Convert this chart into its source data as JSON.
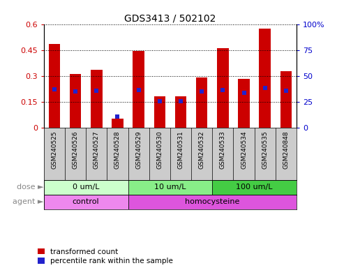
{
  "title": "GDS3413 / 502102",
  "samples": [
    "GSM240525",
    "GSM240526",
    "GSM240527",
    "GSM240528",
    "GSM240529",
    "GSM240530",
    "GSM240531",
    "GSM240532",
    "GSM240533",
    "GSM240534",
    "GSM240535",
    "GSM240848"
  ],
  "transformed_count": [
    0.487,
    0.312,
    0.335,
    0.055,
    0.445,
    0.185,
    0.185,
    0.29,
    0.46,
    0.285,
    0.575,
    0.33
  ],
  "percentile_rank_scaled": [
    0.225,
    0.21,
    0.215,
    0.065,
    0.22,
    0.155,
    0.155,
    0.21,
    0.22,
    0.205,
    0.23,
    0.215
  ],
  "bar_color": "#cc0000",
  "percentile_color": "#2222cc",
  "ylim_left": [
    0,
    0.6
  ],
  "ylim_right": [
    0,
    100
  ],
  "yticks_left": [
    0,
    0.15,
    0.3,
    0.45,
    0.6
  ],
  "yticks_right": [
    0,
    25,
    50,
    75,
    100
  ],
  "ytick_labels_left": [
    "0",
    "0.15",
    "0.3",
    "0.45",
    "0.6"
  ],
  "ytick_labels_right": [
    "0",
    "25",
    "50",
    "75",
    "100%"
  ],
  "dose_groups": [
    {
      "label": "0 um/L",
      "start": 0,
      "end": 4,
      "color": "#ccffcc"
    },
    {
      "label": "10 um/L",
      "start": 4,
      "end": 8,
      "color": "#88ee88"
    },
    {
      "label": "100 um/L",
      "start": 8,
      "end": 12,
      "color": "#44cc44"
    }
  ],
  "agent_groups": [
    {
      "label": "control",
      "start": 0,
      "end": 4,
      "color": "#ee88ee"
    },
    {
      "label": "homocysteine",
      "start": 4,
      "end": 12,
      "color": "#dd55dd"
    }
  ],
  "dose_label": "dose",
  "agent_label": "agent",
  "legend_items": [
    {
      "label": "transformed count",
      "color": "#cc0000"
    },
    {
      "label": "percentile rank within the sample",
      "color": "#2222cc"
    }
  ],
  "background_color": "#ffffff",
  "tick_label_color_left": "#cc0000",
  "tick_label_color_right": "#0000cc",
  "bar_width": 0.55,
  "x_tick_bg": "#cccccc",
  "label_area_color": "#aaaaaa"
}
